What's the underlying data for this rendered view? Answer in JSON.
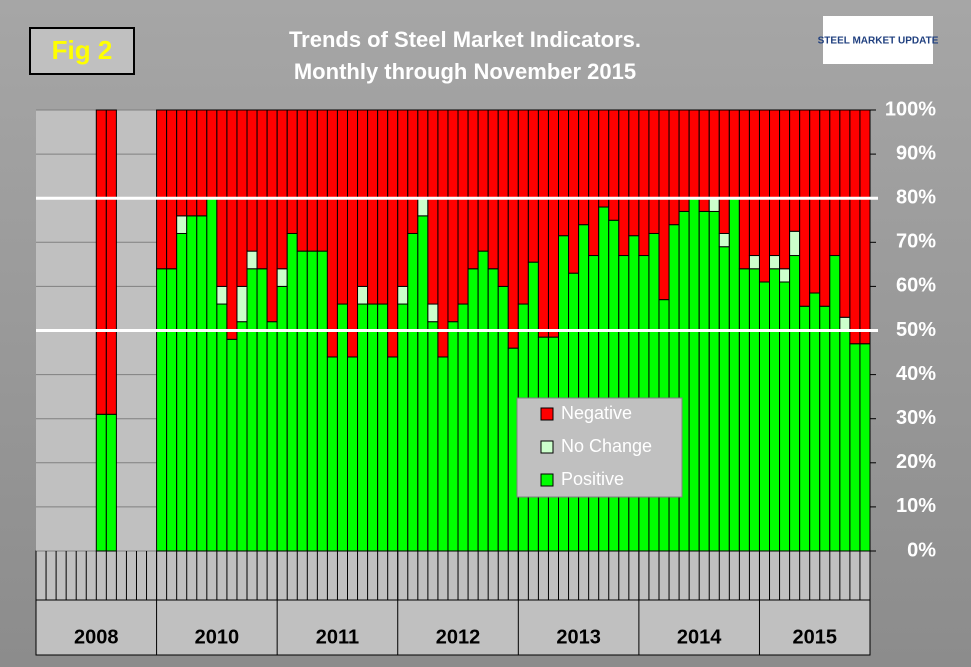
{
  "chart_data": {
    "type": "stacked_bar",
    "title": "Trends of Steel Market Indicators.",
    "subtitle": "Monthly through November 2015",
    "figure_label": "Fig 2",
    "logo": "STEEL MARKET UPDATE",
    "categories": [
      "2008",
      "2008",
      "2008",
      "2008",
      "2008",
      "2008",
      "2008",
      "2008",
      "2008",
      "2008",
      "2008",
      "2008",
      "2010",
      "2010",
      "2010",
      "2010",
      "2010",
      "2010",
      "2010",
      "2010",
      "2010",
      "2010",
      "2010",
      "2010",
      "2011",
      "2011",
      "2011",
      "2011",
      "2011",
      "2011",
      "2011",
      "2011",
      "2011",
      "2011",
      "2011",
      "2011",
      "2012",
      "2012",
      "2012",
      "2012",
      "2012",
      "2012",
      "2012",
      "2012",
      "2012",
      "2012",
      "2012",
      "2012",
      "2013",
      "2013",
      "2013",
      "2013",
      "2013",
      "2013",
      "2013",
      "2013",
      "2013",
      "2013",
      "2013",
      "2013",
      "2014",
      "2014",
      "2014",
      "2014",
      "2014",
      "2014",
      "2014",
      "2014",
      "2014",
      "2014",
      "2014",
      "2014",
      "2015",
      "2015",
      "2015",
      "2015",
      "2015",
      "2015",
      "2015",
      "2015",
      "2015",
      "2015",
      "2015"
    ],
    "series": [
      {
        "name": "Positive",
        "color": "#00ff00",
        "values": [
          null,
          null,
          null,
          null,
          null,
          null,
          31,
          31,
          null,
          null,
          null,
          null,
          64,
          64,
          72,
          76,
          76,
          80,
          56,
          48,
          52,
          64,
          64,
          52,
          60,
          72,
          68,
          68,
          68,
          44,
          56,
          44,
          56,
          56,
          56,
          44,
          56,
          72,
          76,
          52,
          44,
          52,
          56,
          64,
          68,
          64,
          60,
          46,
          56,
          65.5,
          48.5,
          48.5,
          71.5,
          63,
          74,
          67,
          78,
          75,
          67,
          71.5,
          67,
          72,
          57,
          74,
          77,
          80,
          77,
          77,
          69,
          80,
          64,
          64,
          61,
          64,
          61,
          67,
          55.5,
          58.5,
          55.5,
          67,
          50,
          47,
          47
        ]
      },
      {
        "name": "No Change",
        "color": "#ccffcc",
        "values": [
          null,
          null,
          null,
          null,
          null,
          null,
          0,
          0,
          null,
          null,
          null,
          null,
          0,
          0,
          4,
          0,
          0,
          0,
          4,
          0,
          8,
          4,
          0,
          0,
          4,
          0,
          0,
          0,
          0,
          0,
          0,
          0,
          4,
          0,
          0,
          0,
          4,
          0,
          4,
          4,
          0,
          0,
          0,
          0,
          0,
          0,
          0,
          0,
          0,
          0,
          0,
          0,
          0,
          0,
          0,
          0,
          0,
          0,
          0,
          0,
          0,
          0,
          0,
          0,
          0,
          0,
          0,
          3,
          3,
          0,
          0,
          3,
          0,
          3,
          3,
          5.5,
          0,
          0,
          0,
          0,
          3,
          0,
          0
        ]
      },
      {
        "name": "Negative",
        "color": "#ff0000",
        "values": [
          null,
          null,
          null,
          null,
          null,
          null,
          69,
          69,
          null,
          null,
          null,
          null,
          36,
          36,
          24,
          24,
          24,
          20,
          40,
          52,
          40,
          32,
          36,
          48,
          36,
          28,
          32,
          32,
          32,
          56,
          44,
          56,
          40,
          44,
          44,
          56,
          40,
          28,
          20,
          44,
          56,
          48,
          44,
          36,
          32,
          36,
          40,
          54,
          44,
          34.5,
          51.5,
          51.5,
          28.5,
          37,
          26,
          33,
          22,
          25,
          33,
          28.5,
          33,
          28,
          43,
          26,
          23,
          20,
          23,
          20,
          28,
          20,
          36,
          33,
          39,
          33,
          36,
          27.5,
          44.5,
          41.5,
          44.5,
          33,
          47,
          53,
          53
        ]
      }
    ],
    "ylim": [
      0,
      100
    ],
    "yticks": [
      {
        "value": 0,
        "label": "0%"
      },
      {
        "value": 10,
        "label": "10%"
      },
      {
        "value": 20,
        "label": "20%"
      },
      {
        "value": 30,
        "label": "30%"
      },
      {
        "value": 40,
        "label": "40%"
      },
      {
        "value": 50,
        "label": "50%"
      },
      {
        "value": 60,
        "label": "60%"
      },
      {
        "value": 70,
        "label": "70%"
      },
      {
        "value": 80,
        "label": "80%"
      },
      {
        "value": 90,
        "label": "90%"
      },
      {
        "value": 100,
        "label": "100%"
      }
    ],
    "reference_lines": [
      80,
      50
    ],
    "grid": true,
    "legend_position": "center"
  }
}
